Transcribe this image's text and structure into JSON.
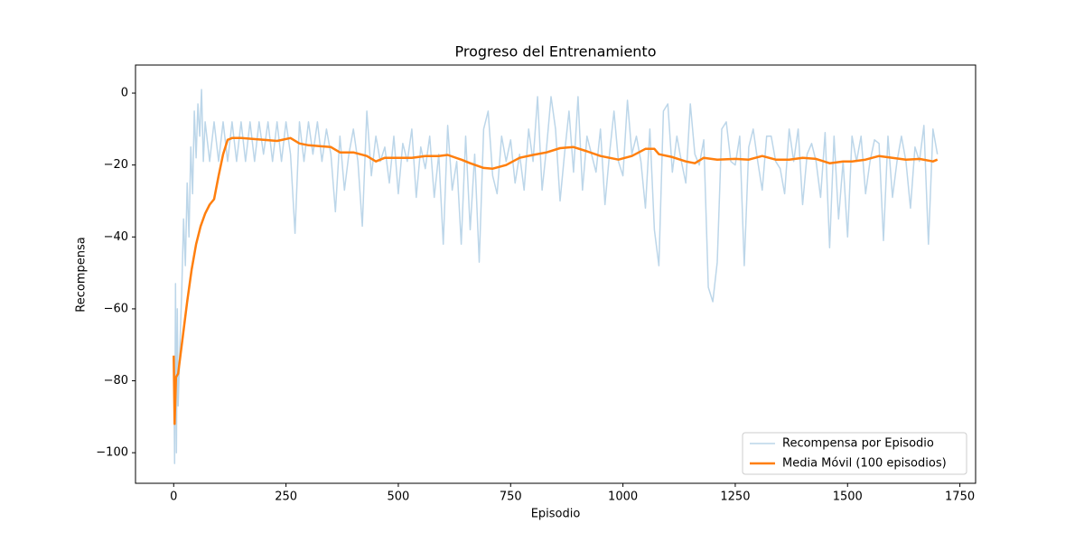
{
  "chart_data": {
    "type": "line",
    "title": "Progreso del Entrenamiento",
    "x_label": "Episodio",
    "y_label": "Recompensa",
    "xlim": [
      -85,
      1785
    ],
    "ylim": [
      -108.5,
      7.8
    ],
    "xticks": [
      0,
      250,
      500,
      750,
      1000,
      1250,
      1500,
      1750
    ],
    "yticks": [
      {
        "value": -100,
        "label": "−100"
      },
      {
        "value": -80,
        "label": "−80"
      },
      {
        "value": -60,
        "label": "−60"
      },
      {
        "value": -40,
        "label": "−40"
      },
      {
        "value": -20,
        "label": "−20"
      },
      0
    ],
    "legend": "lower right",
    "series": [
      {
        "name": "Recompensa por Episodio",
        "color": "#bcd6e9",
        "width": 1.5,
        "x": [
          0,
          2,
          4,
          6,
          8,
          10,
          14,
          18,
          22,
          26,
          30,
          34,
          38,
          42,
          46,
          50,
          54,
          58,
          62,
          66,
          70,
          80,
          90,
          100,
          110,
          120,
          130,
          140,
          150,
          160,
          170,
          180,
          190,
          200,
          210,
          220,
          230,
          240,
          250,
          260,
          270,
          280,
          290,
          300,
          310,
          320,
          330,
          340,
          350,
          360,
          370,
          380,
          390,
          400,
          410,
          420,
          430,
          440,
          450,
          460,
          470,
          480,
          490,
          500,
          510,
          520,
          530,
          540,
          550,
          560,
          570,
          580,
          590,
          600,
          610,
          620,
          630,
          640,
          650,
          660,
          670,
          680,
          690,
          700,
          710,
          720,
          730,
          740,
          750,
          760,
          770,
          780,
          790,
          800,
          810,
          820,
          830,
          840,
          850,
          860,
          870,
          880,
          890,
          900,
          910,
          920,
          930,
          940,
          950,
          960,
          970,
          980,
          990,
          1000,
          1010,
          1020,
          1030,
          1040,
          1050,
          1060,
          1070,
          1080,
          1090,
          1100,
          1110,
          1120,
          1130,
          1140,
          1150,
          1160,
          1170,
          1180,
          1190,
          1200,
          1210,
          1220,
          1230,
          1240,
          1250,
          1260,
          1270,
          1280,
          1290,
          1300,
          1310,
          1320,
          1330,
          1340,
          1350,
          1360,
          1370,
          1380,
          1390,
          1400,
          1410,
          1420,
          1430,
          1440,
          1450,
          1460,
          1470,
          1480,
          1490,
          1500,
          1510,
          1520,
          1530,
          1540,
          1550,
          1560,
          1570,
          1580,
          1590,
          1600,
          1610,
          1620,
          1630,
          1640,
          1650,
          1660,
          1670,
          1680,
          1690,
          1700
        ],
        "values": [
          -73,
          -103,
          -53,
          -100,
          -60,
          -87,
          -70,
          -55,
          -35,
          -48,
          -25,
          -40,
          -15,
          -28,
          -5,
          -18,
          -3,
          -12,
          1,
          -19,
          -8,
          -19,
          -8,
          -19,
          -8,
          -19,
          -8,
          -19,
          -8,
          -19,
          -8,
          -19,
          -8,
          -17,
          -8,
          -19,
          -8,
          -19,
          -8,
          -17,
          -39,
          -8,
          -19,
          -8,
          -17,
          -8,
          -19,
          -10,
          -17,
          -33,
          -12,
          -27,
          -17,
          -10,
          -19,
          -37,
          -5,
          -23,
          -12,
          -19,
          -15,
          -25,
          -12,
          -28,
          -14,
          -19,
          -10,
          -29,
          -15,
          -21,
          -12,
          -29,
          -17,
          -42,
          -9,
          -27,
          -19,
          -42,
          -12,
          -38,
          -17,
          -47,
          -10,
          -5,
          -23,
          -28,
          -12,
          -19,
          -13,
          -25,
          -17,
          -27,
          -10,
          -19,
          -1,
          -27,
          -15,
          -1,
          -10,
          -30,
          -17,
          -5,
          -22,
          -1,
          -27,
          -12,
          -17,
          -22,
          -10,
          -31,
          -17,
          -5,
          -19,
          -23,
          -2,
          -17,
          -12,
          -19,
          -32,
          -10,
          -38,
          -48,
          -5,
          -3,
          -22,
          -12,
          -19,
          -25,
          -3,
          -17,
          -20,
          -13,
          -54,
          -58,
          -47,
          -10,
          -8,
          -19,
          -20,
          -12,
          -48,
          -15,
          -10,
          -19,
          -27,
          -12,
          -12,
          -19,
          -21,
          -28,
          -10,
          -19,
          -10,
          -31,
          -17,
          -14,
          -19,
          -29,
          -11,
          -43,
          -12,
          -35,
          -19,
          -40,
          -12,
          -19,
          -12,
          -28,
          -19,
          -13,
          -14,
          -41,
          -12,
          -29,
          -19,
          -12,
          -19,
          -32,
          -15,
          -19,
          -9,
          -42,
          -10,
          -17
        ]
      },
      {
        "name": "Media Móvil (100 episodios)",
        "color": "#ff7f0e",
        "width": 2.5,
        "x": [
          0,
          2,
          5,
          10,
          20,
          30,
          40,
          50,
          60,
          70,
          80,
          90,
          100,
          110,
          120,
          130,
          150,
          200,
          230,
          260,
          280,
          300,
          330,
          350,
          370,
          400,
          430,
          450,
          470,
          500,
          530,
          560,
          590,
          610,
          640,
          660,
          690,
          710,
          740,
          770,
          800,
          830,
          860,
          890,
          920,
          950,
          990,
          1020,
          1050,
          1070,
          1080,
          1110,
          1140,
          1160,
          1180,
          1210,
          1250,
          1280,
          1310,
          1340,
          1370,
          1400,
          1430,
          1460,
          1490,
          1510,
          1540,
          1570,
          1600,
          1630,
          1660,
          1690,
          1700
        ],
        "values": [
          -73,
          -92,
          -79,
          -78,
          -68,
          -58,
          -49,
          -42,
          -37,
          -33.5,
          -31,
          -29.5,
          -23,
          -17,
          -13,
          -12.5,
          -12.5,
          -13,
          -13.3,
          -12.5,
          -14,
          -14.5,
          -14.8,
          -15,
          -16.5,
          -16.5,
          -17.5,
          -19,
          -18,
          -18,
          -18,
          -17.5,
          -17.5,
          -17.2,
          -18.5,
          -19.5,
          -20.8,
          -21,
          -20,
          -18,
          -17.2,
          -16.5,
          -15.3,
          -15,
          -16.2,
          -17.5,
          -18.5,
          -17.5,
          -15.5,
          -15.5,
          -17,
          -17.8,
          -19,
          -19.5,
          -18,
          -18.5,
          -18.3,
          -18.5,
          -17.5,
          -18.5,
          -18.5,
          -18,
          -18.3,
          -19.5,
          -19,
          -19,
          -18.5,
          -17.5,
          -18,
          -18.5,
          -18.3,
          -19,
          -18.5
        ]
      }
    ]
  }
}
